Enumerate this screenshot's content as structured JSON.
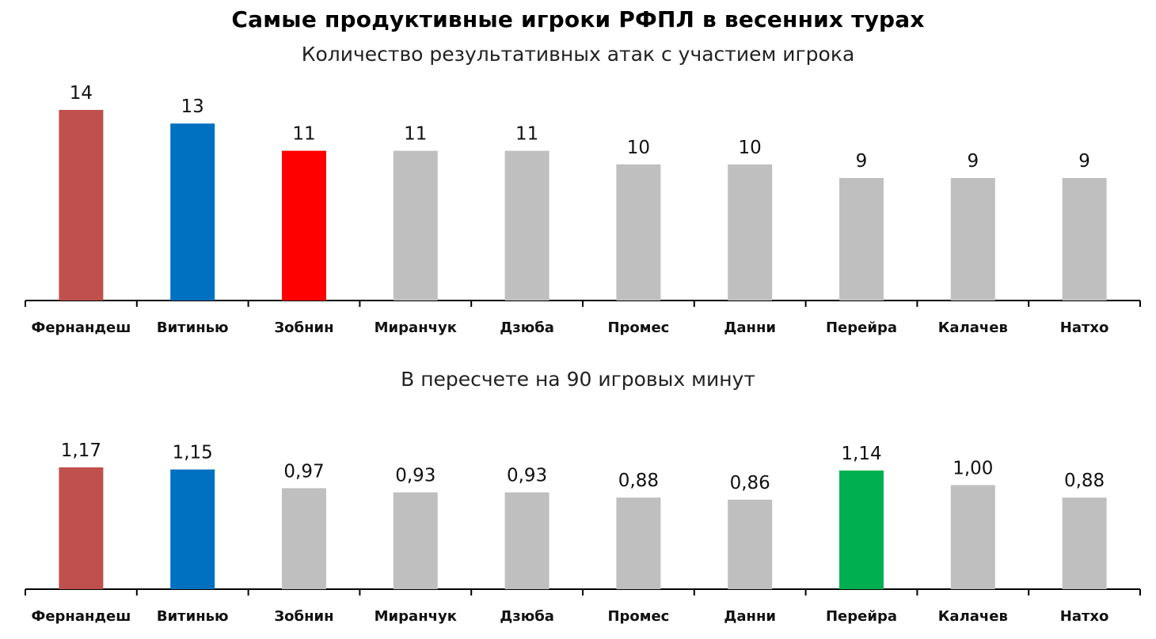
{
  "title": "Самые продуктивные игроки РФПЛ в весенних турах",
  "chart_data": [
    {
      "type": "bar",
      "subtitle": "Количество результативных атак с участием игрока",
      "categories": [
        "Фернандеш",
        "Витинью",
        "Зобнин",
        "Миранчук",
        "Дзюба",
        "Промес",
        "Данни",
        "Перейра",
        "Калачев",
        "Натхо"
      ],
      "values": [
        14,
        13,
        11,
        11,
        11,
        10,
        10,
        9,
        9,
        9
      ],
      "value_labels": [
        "14",
        "13",
        "11",
        "11",
        "11",
        "10",
        "10",
        "9",
        "9",
        "9"
      ],
      "colors": [
        "#c0504d",
        "#0070c0",
        "#ff0000",
        "#bfbfbf",
        "#bfbfbf",
        "#bfbfbf",
        "#bfbfbf",
        "#bfbfbf",
        "#bfbfbf",
        "#bfbfbf"
      ],
      "ylim": [
        0,
        14
      ],
      "grid": false,
      "legend": "none"
    },
    {
      "type": "bar",
      "subtitle": "В пересчете на 90 игровых минут",
      "categories": [
        "Фернандеш",
        "Витинью",
        "Зобнин",
        "Миранчук",
        "Дзюба",
        "Промес",
        "Данни",
        "Перейра",
        "Калачев",
        "Натхо"
      ],
      "values": [
        1.17,
        1.15,
        0.97,
        0.93,
        0.93,
        0.88,
        0.86,
        1.14,
        1.0,
        0.88
      ],
      "value_labels": [
        "1,17",
        "1,15",
        "0,97",
        "0,93",
        "0,93",
        "0,88",
        "0,86",
        "1,14",
        "1,00",
        "0,88"
      ],
      "colors": [
        "#c0504d",
        "#0070c0",
        "#bfbfbf",
        "#bfbfbf",
        "#bfbfbf",
        "#bfbfbf",
        "#bfbfbf",
        "#00b050",
        "#bfbfbf",
        "#bfbfbf"
      ],
      "ylim": [
        0,
        1.17
      ],
      "grid": false,
      "legend": "none"
    }
  ]
}
